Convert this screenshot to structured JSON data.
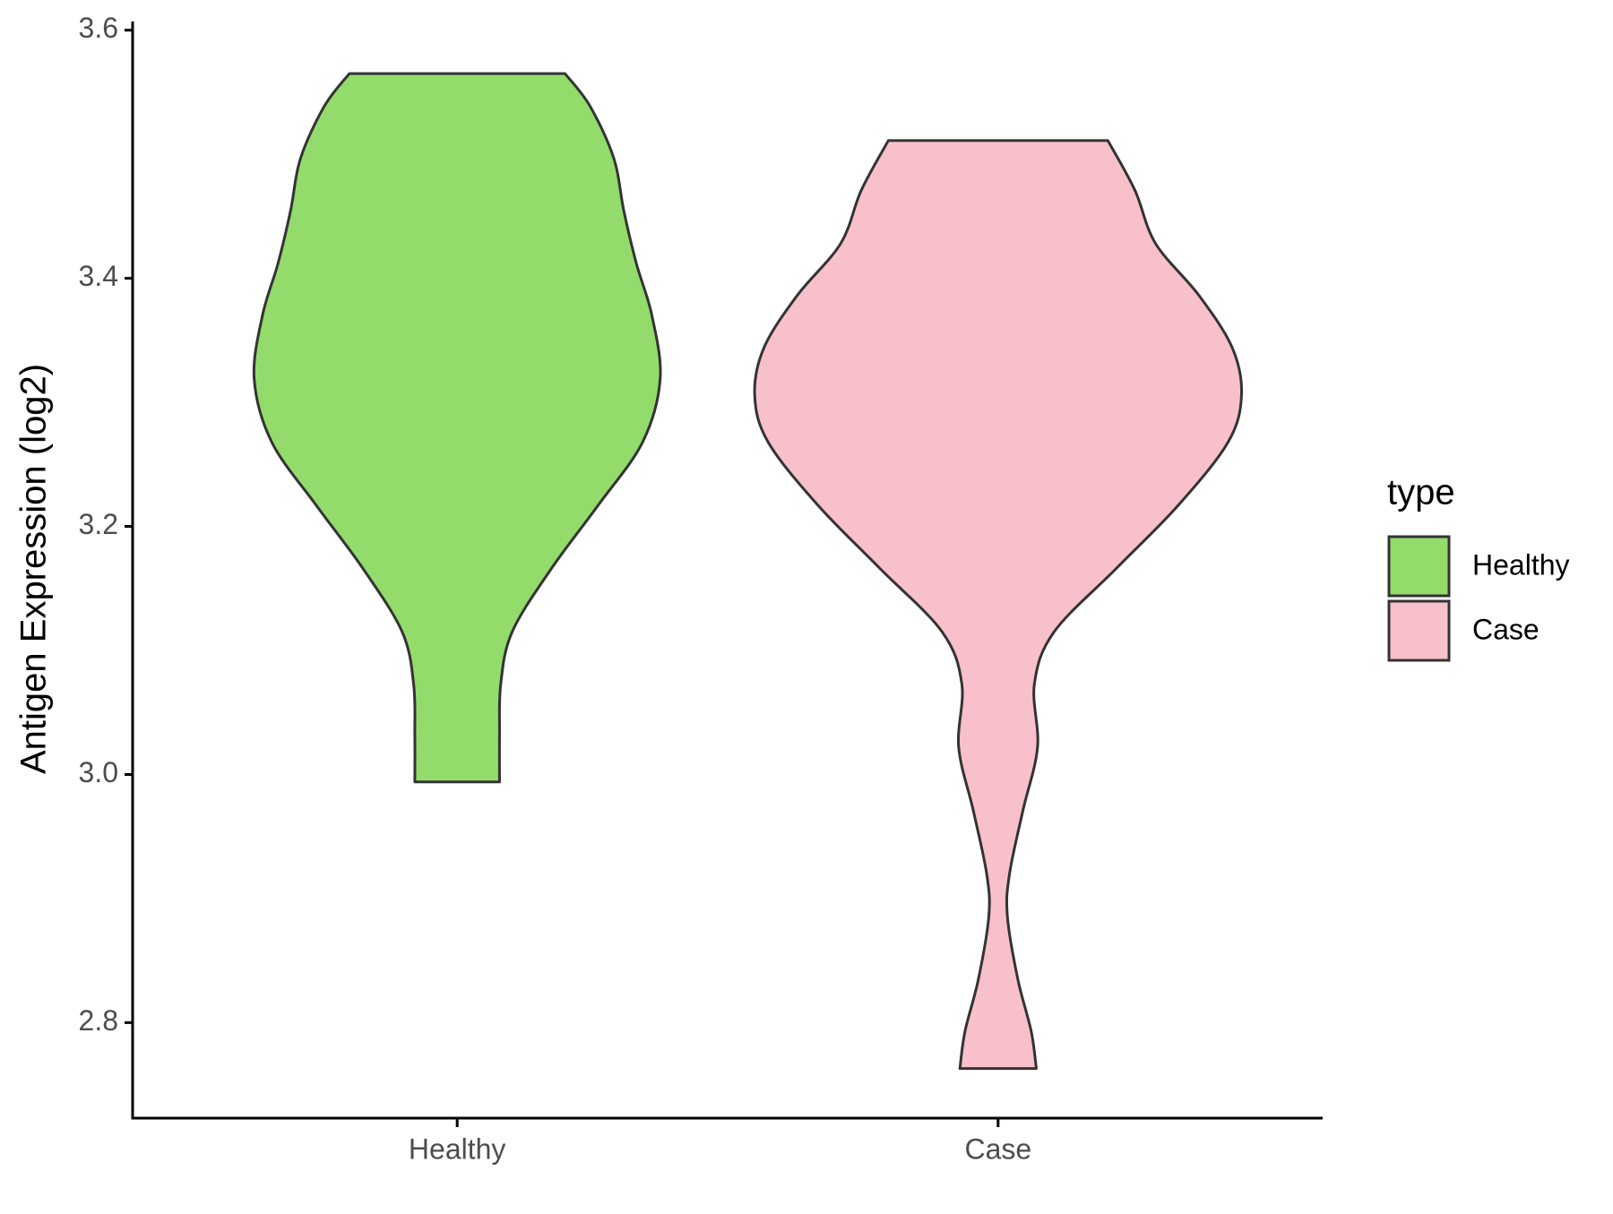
{
  "chart_data": {
    "type": "violin",
    "ylabel": "Antigen Expression (log2)",
    "categories": [
      "Healthy",
      "Case"
    ],
    "ylim": [
      2.723,
      3.607
    ],
    "yticks": [
      {
        "value": 2.8,
        "label": "2.8"
      },
      {
        "value": 3.0,
        "label": "3.0"
      },
      {
        "value": 3.2,
        "label": "3.2"
      },
      {
        "value": 3.4,
        "label": "3.4"
      },
      {
        "value": 3.6,
        "label": "3.6"
      }
    ],
    "legend_title": "type",
    "legend": "right",
    "series": [
      {
        "name": "Healthy",
        "color": "#93dc6b",
        "y": [
          3.565,
          3.539,
          3.497,
          3.454,
          3.412,
          3.37,
          3.319,
          3.268,
          3.217,
          3.166,
          3.115,
          3.073,
          3.031,
          2.994
        ],
        "width": [
          0.443,
          0.545,
          0.643,
          0.685,
          0.736,
          0.8,
          0.834,
          0.762,
          0.579,
          0.387,
          0.226,
          0.179,
          0.174,
          0.174
        ]
      },
      {
        "name": "Case",
        "color": "#f8c0cb",
        "y": [
          3.511,
          3.471,
          3.428,
          3.386,
          3.344,
          3.306,
          3.268,
          3.217,
          3.166,
          3.115,
          3.073,
          3.022,
          2.971,
          2.92,
          2.886,
          2.835,
          2.793,
          2.763
        ],
        "width": [
          0.451,
          0.562,
          0.647,
          0.826,
          0.962,
          1.0,
          0.945,
          0.74,
          0.485,
          0.23,
          0.149,
          0.162,
          0.102,
          0.047,
          0.038,
          0.081,
          0.136,
          0.157
        ]
      }
    ]
  }
}
